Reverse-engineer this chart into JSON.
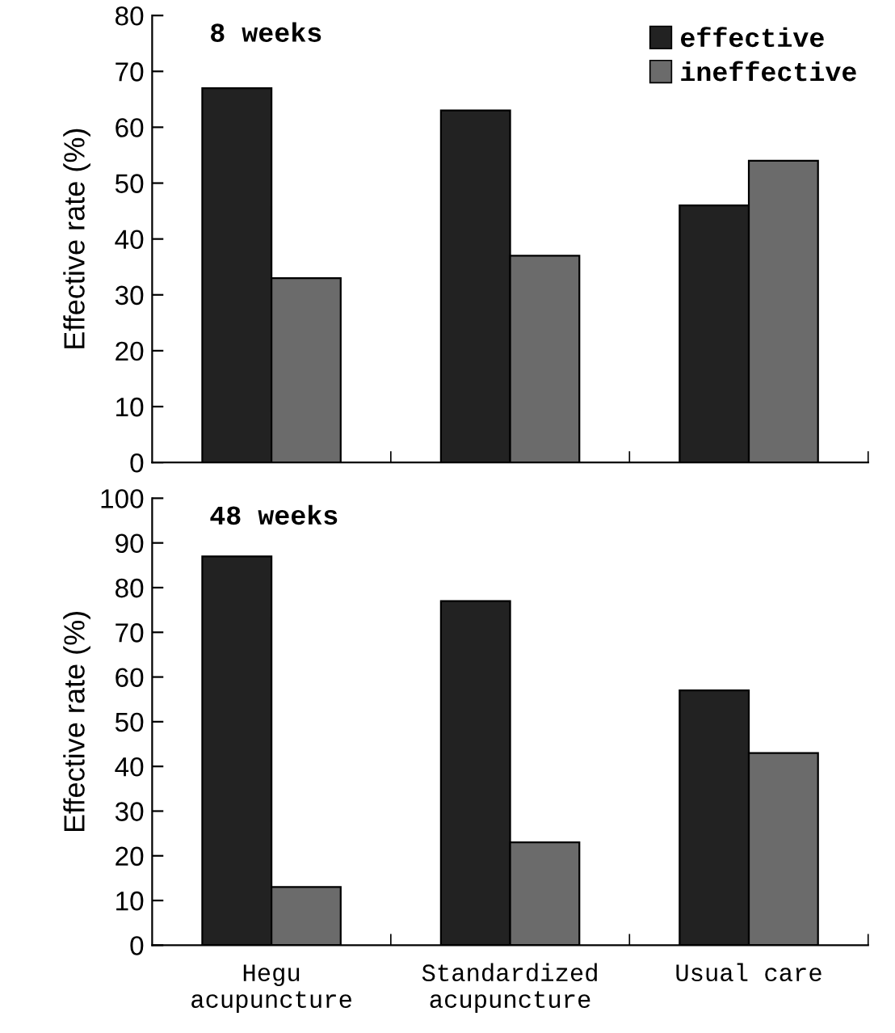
{
  "chart_data": [
    {
      "type": "bar",
      "title": "8 weeks",
      "ylabel": "Effective rate (%)",
      "categories": [
        null,
        null,
        null
      ],
      "tick_labels": "y",
      "ylim": [
        0,
        80
      ],
      "yticks": [
        0,
        10,
        20,
        30,
        40,
        50,
        60,
        70,
        80
      ],
      "legend": "top right",
      "grid": false,
      "series": [
        {
          "name": "effective",
          "color": "#222222",
          "values": [
            67,
            63,
            46
          ]
        },
        {
          "name": "ineffective",
          "color": "#6b6b6b",
          "values": [
            33,
            37,
            54
          ]
        }
      ]
    },
    {
      "type": "bar",
      "title": "48 weeks",
      "ylabel": "Effective rate (%)",
      "categories": [
        "Hegu\nacupuncture",
        "Standardized\nacupuncture",
        "Usual care"
      ],
      "ylim": [
        0,
        100
      ],
      "yticks": [
        0,
        10,
        20,
        30,
        40,
        50,
        60,
        70,
        80,
        90,
        100
      ],
      "legend": false,
      "grid": false,
      "series": [
        {
          "color": "#222222",
          "values": [
            87,
            77,
            57
          ]
        },
        {
          "color": "#6b6b6b",
          "values": [
            13,
            23,
            43
          ]
        }
      ]
    }
  ]
}
